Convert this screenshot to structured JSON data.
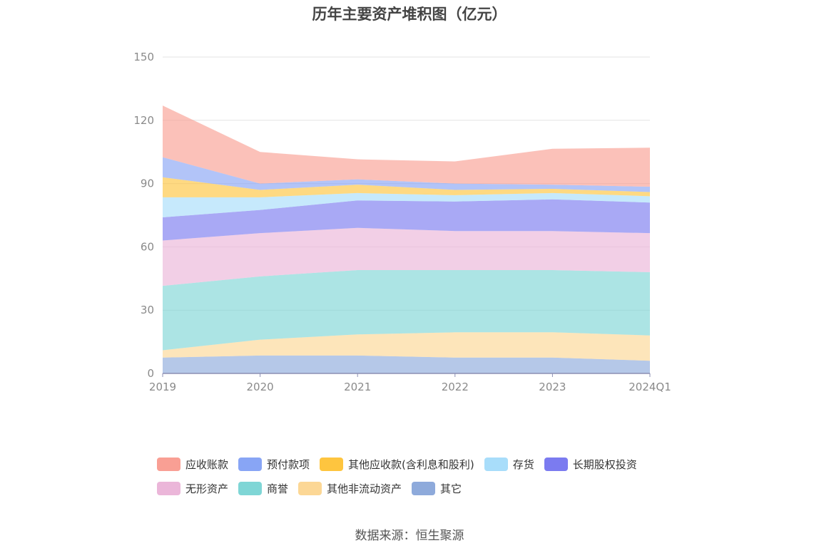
{
  "title": "历年主要资产堆积图（亿元）",
  "source": "数据来源：恒生聚源",
  "chart_data": {
    "type": "area",
    "stacked": true,
    "categories": [
      "2019",
      "2020",
      "2021",
      "2022",
      "2023",
      "2024Q1"
    ],
    "ylim": [
      0,
      150
    ],
    "yticks": [
      0,
      30,
      60,
      90,
      120,
      150
    ],
    "grid": true,
    "legend_position": "bottom",
    "series": [
      {
        "name": "其它",
        "color": "#8eaadb",
        "values": [
          7.5,
          8.5,
          8.5,
          7.5,
          7.5,
          6
        ]
      },
      {
        "name": "其他非流动资产",
        "color": "#fcd795",
        "values": [
          3.5,
          7.5,
          10,
          12,
          12,
          12
        ]
      },
      {
        "name": "商誉",
        "color": "#7fd6d6",
        "values": [
          30.5,
          30,
          30.5,
          29.5,
          29.5,
          30
        ]
      },
      {
        "name": "无形资产",
        "color": "#ebb6d9",
        "values": [
          21.5,
          20.5,
          20,
          18.5,
          18.5,
          18.5
        ]
      },
      {
        "name": "长期股权投资",
        "color": "#7b7bf0",
        "values": [
          11,
          11,
          13,
          14,
          15,
          14.5
        ]
      },
      {
        "name": "存货",
        "color": "#a8ddfa",
        "values": [
          9.5,
          6,
          3.5,
          3,
          3,
          3
        ]
      },
      {
        "name": "其他应收款(含利息和股利)",
        "color": "#fec53f",
        "values": [
          9.5,
          3.5,
          4,
          2.5,
          2,
          2
        ]
      },
      {
        "name": "预付款项",
        "color": "#88a5f5",
        "values": [
          9.5,
          3,
          2.5,
          3,
          2,
          2.5
        ]
      },
      {
        "name": "应收账款",
        "color": "#f99f94",
        "values": [
          24.5,
          15,
          9.5,
          10.5,
          17,
          18.5
        ]
      }
    ],
    "legend_order": [
      [
        "应收账款",
        "预付款项",
        "其他应收款(含利息和股利)",
        "存货",
        "长期股权投资"
      ],
      [
        "无形资产",
        "商誉",
        "其他非流动资产",
        "其它"
      ]
    ]
  }
}
